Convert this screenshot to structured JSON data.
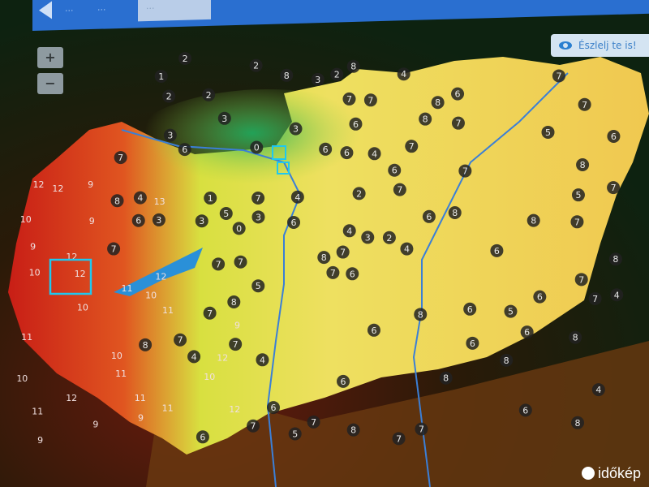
{
  "header": {
    "tabs": [
      {
        "label": "...",
        "active": false
      },
      {
        "label": "...",
        "active": false
      },
      {
        "label": "...",
        "active": true
      }
    ]
  },
  "map": {
    "zoom_in_label": "+",
    "zoom_out_label": "−",
    "observe_button_label": "Észlelj te is!",
    "observe_icon": "eye-icon",
    "logo_text": "időkép",
    "colors": {
      "background": "#0b1a10",
      "low": "#3fbf4a",
      "mid": "#e9d84a",
      "high": "#d8261c",
      "marker": "#222",
      "river": "#3b7fd6"
    },
    "stations": [
      2,
      0,
      3,
      3,
      4,
      6,
      4,
      3,
      4,
      2,
      2,
      3,
      6,
      7,
      7,
      6,
      6,
      7,
      4,
      4,
      3,
      6,
      5,
      6,
      7,
      6,
      6,
      7,
      7,
      6,
      4,
      2,
      2,
      1,
      3,
      4,
      4,
      3,
      5,
      6,
      7,
      8,
      10,
      9,
      8,
      10,
      11,
      12,
      12,
      12,
      11,
      10,
      10,
      12,
      13,
      11,
      10,
      11,
      9,
      12,
      11,
      11,
      9,
      11,
      12,
      8,
      7,
      6,
      6,
      7,
      8,
      9,
      8,
      8,
      8,
      7,
      7,
      9,
      8,
      7,
      7,
      6,
      5,
      6,
      7,
      8,
      8,
      8,
      6,
      7,
      6,
      7,
      7,
      6,
      6,
      8,
      8,
      7,
      8,
      7,
      7,
      9,
      7,
      6,
      5,
      4,
      2,
      1,
      0,
      3,
      2,
      5,
      4,
      5,
      6,
      6,
      7,
      7,
      8,
      7,
      7,
      8,
      8,
      10,
      12,
      10,
      12,
      8,
      7,
      9
    ]
  }
}
